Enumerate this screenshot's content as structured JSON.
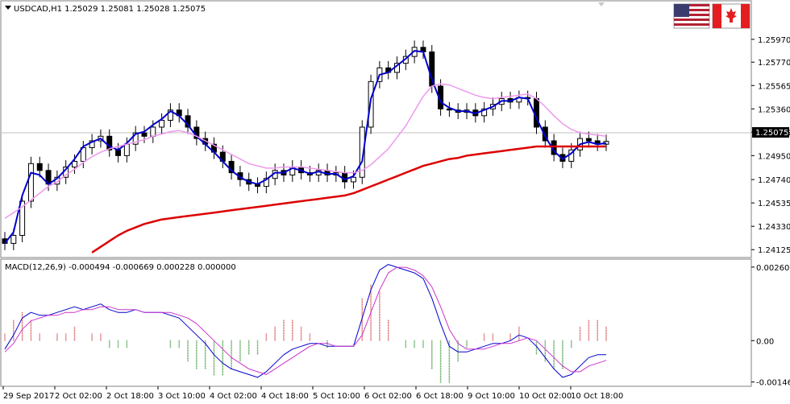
{
  "header": {
    "title": "USDCAD,H1  1.25029 1.25081 1.25028 1.25075"
  },
  "flags": {
    "base": "US flag",
    "quote": "Canada flag"
  },
  "colors": {
    "candles": "#000000",
    "ma_fast": "#0000cc",
    "ma_slow": "#ee99ee",
    "ma_long": "#dd0000",
    "macd_line": "#0000cc",
    "signal_line": "#cc33cc",
    "hist_pos": "#cc3333",
    "hist_neg": "#228822",
    "bid_line": "#c0c0c0"
  },
  "current_price": {
    "label": "1.25075",
    "value": 1.25075
  },
  "chart_data": [
    {
      "type": "candlestick",
      "title": "USDCAD,H1",
      "ohlc_header": "1.25029 1.25081 1.25028 1.25075",
      "y_ticks": [
        "1.25970",
        "1.25770",
        "1.25565",
        "1.25360",
        "1.25155",
        "1.24950",
        "1.24740",
        "1.24535",
        "1.24330",
        "1.24125"
      ],
      "ylim": [
        1.2407,
        1.2616
      ],
      "x_ticks": [
        "29 Sep 2017",
        "2 Oct 02:00",
        "2 Oct 18:00",
        "3 Oct 10:00",
        "4 Oct 02:00",
        "4 Oct 18:00",
        "5 Oct 10:00",
        "6 Oct 02:00",
        "6 Oct 18:00",
        "9 Oct 10:00",
        "10 Oct 02:00",
        "10 Oct 18:00"
      ],
      "close": [
        1.2418,
        1.2425,
        1.2455,
        1.2488,
        1.2482,
        1.247,
        1.2476,
        1.2485,
        1.249,
        1.2502,
        1.2508,
        1.2512,
        1.25,
        1.2495,
        1.2505,
        1.2515,
        1.2512,
        1.252,
        1.2526,
        1.2535,
        1.253,
        1.252,
        1.251,
        1.2505,
        1.2498,
        1.249,
        1.248,
        1.2474,
        1.247,
        1.2468,
        1.2475,
        1.2482,
        1.2478,
        1.2485,
        1.248,
        1.2478,
        1.2482,
        1.2478,
        1.248,
        1.2472,
        1.2476,
        1.252,
        1.256,
        1.2572,
        1.2568,
        1.2576,
        1.2582,
        1.259,
        1.2586,
        1.2556,
        1.2536,
        1.2535,
        1.2533,
        1.2535,
        1.253,
        1.2536,
        1.254,
        1.2545,
        1.2542,
        1.2546,
        1.2545,
        1.252,
        1.2508,
        1.2496,
        1.249,
        1.25,
        1.251,
        1.2508,
        1.2505,
        1.25075
      ],
      "series": [
        {
          "name": "",
          "kind": "ma_fast",
          "values": [
            1.2418,
            1.2428,
            1.246,
            1.248,
            1.2478,
            1.247,
            1.2475,
            1.2483,
            1.2492,
            1.2503,
            1.2507,
            1.251,
            1.2503,
            1.25,
            1.2506,
            1.2514,
            1.2516,
            1.2522,
            1.2527,
            1.2534,
            1.253,
            1.2522,
            1.2512,
            1.2505,
            1.2498,
            1.249,
            1.2482,
            1.2476,
            1.2472,
            1.247,
            1.2474,
            1.248,
            1.248,
            1.2484,
            1.2482,
            1.2479,
            1.2481,
            1.2479,
            1.2479,
            1.2474,
            1.2477,
            1.249,
            1.2545,
            1.2566,
            1.2568,
            1.2574,
            1.258,
            1.2587,
            1.2586,
            1.2562,
            1.2542,
            1.2537,
            1.2534,
            1.2534,
            1.2532,
            1.2535,
            1.2538,
            1.2543,
            1.2543,
            1.2546,
            1.2545,
            1.2528,
            1.2512,
            1.2499,
            1.2492,
            1.2497,
            1.2505,
            1.2507,
            1.2505,
            1.2506
          ]
        },
        {
          "name": "",
          "kind": "ma_slow",
          "values": [
            1.244,
            1.2445,
            1.245,
            1.2456,
            1.2462,
            1.2468,
            1.2472,
            1.2478,
            1.2483,
            1.2489,
            1.2494,
            1.2498,
            1.2501,
            1.2503,
            1.2505,
            1.2507,
            1.2509,
            1.2512,
            1.2514,
            1.2516,
            1.2517,
            1.2515,
            1.2512,
            1.2508,
            1.2504,
            1.25,
            1.2496,
            1.2492,
            1.2488,
            1.2486,
            1.2484,
            1.2484,
            1.2485,
            1.2485,
            1.2485,
            1.2484,
            1.2483,
            1.2482,
            1.2481,
            1.248,
            1.248,
            1.2482,
            1.2487,
            1.2494,
            1.2501,
            1.2511,
            1.2521,
            1.2534,
            1.2547,
            1.2556,
            1.2558,
            1.2557,
            1.2554,
            1.2551,
            1.2548,
            1.2546,
            1.2545,
            1.2546,
            1.2547,
            1.2548,
            1.2549,
            1.2545,
            1.2538,
            1.253,
            1.2523,
            1.2518,
            1.2515,
            1.2514,
            1.2513,
            1.2512
          ]
        },
        {
          "name": "",
          "kind": "ma_long",
          "values": [
            null,
            null,
            null,
            null,
            null,
            null,
            null,
            null,
            null,
            null,
            1.241,
            1.2415,
            1.242,
            1.2425,
            1.2429,
            1.2432,
            1.2435,
            1.2437,
            1.2439,
            1.244,
            1.2441,
            1.2442,
            1.2443,
            1.2444,
            1.2445,
            1.2446,
            1.2447,
            1.2448,
            1.2449,
            1.245,
            1.2451,
            1.2452,
            1.2453,
            1.2454,
            1.2455,
            1.2456,
            1.2457,
            1.2458,
            1.2459,
            1.246,
            1.2462,
            1.2465,
            1.2468,
            1.2471,
            1.2474,
            1.2477,
            1.248,
            1.2483,
            1.2486,
            1.2488,
            1.249,
            1.2492,
            1.2493,
            1.2495,
            1.2496,
            1.2497,
            1.2498,
            1.2499,
            1.25,
            1.2501,
            1.2502,
            1.2503,
            1.2503,
            1.2503,
            1.2503,
            1.2503,
            1.2503,
            1.2503,
            1.2503,
            1.2503
          ]
        }
      ]
    },
    {
      "type": "macd",
      "title": "MACD(12,26,9) -0.000494 -0.000669 0.000228 0.000000",
      "y_ticks": [
        "0.002605",
        "0.00",
        "-0.001465"
      ],
      "ylim": [
        -0.00156,
        0.00283
      ],
      "series": [
        {
          "name": "",
          "kind": "macd_line",
          "values": [
            -0.0003,
            0.0002,
            0.0008,
            0.001,
            0.0009,
            0.0009,
            0.001,
            0.0011,
            0.0012,
            0.0011,
            0.0012,
            0.0013,
            0.0011,
            0.001,
            0.001,
            0.0011,
            0.001,
            0.001,
            0.001,
            0.0009,
            0.0008,
            0.0005,
            0.0002,
            -0.0001,
            -0.0005,
            -0.0008,
            -0.001,
            -0.0011,
            -0.0012,
            -0.0013,
            -0.0011,
            -0.0008,
            -0.0005,
            -0.0003,
            -0.0002,
            -0.0001,
            -0.0001,
            -0.0002,
            -0.0002,
            -0.0002,
            -0.0002,
            0.0008,
            0.0018,
            0.0025,
            0.0027,
            0.0026,
            0.0025,
            0.0024,
            0.0022,
            0.0015,
            0.0006,
            -0.0002,
            -0.0004,
            -0.0004,
            -0.0003,
            -0.0002,
            -0.0001,
            -0.0001,
            0.0,
            0.0002,
            0.0001,
            -0.0002,
            -0.0006,
            -0.001,
            -0.0013,
            -0.0012,
            -0.0009,
            -0.0006,
            -0.0005,
            -0.0005
          ]
        },
        {
          "name": "",
          "kind": "signal_line",
          "values": [
            -0.0004,
            -0.0001,
            0.0004,
            0.0007,
            0.0008,
            0.0009,
            0.0009,
            0.001,
            0.001,
            0.0011,
            0.0011,
            0.0012,
            0.0012,
            0.0011,
            0.0011,
            0.0011,
            0.001,
            0.001,
            0.001,
            0.001,
            0.0009,
            0.0008,
            0.0006,
            0.0003,
            0.0,
            -0.0003,
            -0.0006,
            -0.0008,
            -0.001,
            -0.0011,
            -0.0012,
            -0.001,
            -0.0008,
            -0.0006,
            -0.0004,
            -0.0002,
            -0.0001,
            -0.0001,
            -0.0002,
            -0.0002,
            -0.0002,
            0.0002,
            0.001,
            0.0018,
            0.0024,
            0.0026,
            0.0026,
            0.0025,
            0.0023,
            0.0019,
            0.0012,
            0.0004,
            -0.0001,
            -0.0003,
            -0.0003,
            -0.0003,
            -0.0002,
            -0.0001,
            -0.0001,
            0.0,
            0.0001,
            0.0,
            -0.0003,
            -0.0006,
            -0.0009,
            -0.0011,
            -0.0011,
            -0.0009,
            -0.0008,
            -0.0007
          ]
        }
      ]
    }
  ]
}
